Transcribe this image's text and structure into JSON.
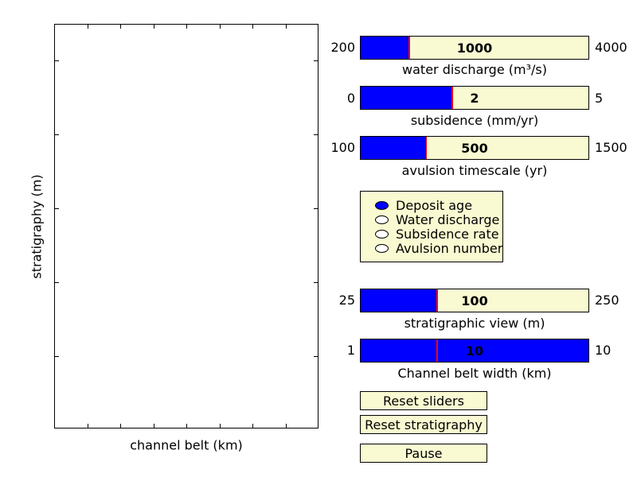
{
  "plot": {
    "xlabel": "channel belt (km)",
    "ylabel": "stratigraphy (m)"
  },
  "sliders": {
    "water_discharge": {
      "label": "water discharge (m³/s)",
      "min": "200",
      "max": "4000",
      "value": "1000",
      "fraction": 0.21
    },
    "subsidence": {
      "label": "subsidence (mm/yr)",
      "min": "0",
      "max": "5",
      "value": "2",
      "fraction": 0.4
    },
    "avulsion": {
      "label": "avulsion timescale (yr)",
      "min": "100",
      "max": "1500",
      "value": "500",
      "fraction": 0.286
    },
    "strat_view": {
      "label": "stratigraphic view (m)",
      "min": "25",
      "max": "250",
      "value": "100",
      "fraction": 0.333
    },
    "belt_width": {
      "label": "Channel belt width (km)",
      "min": "1",
      "max": "10",
      "value": "10",
      "fraction": 1.0,
      "marker_fraction": 0.333
    }
  },
  "radio": {
    "options": [
      "Deposit age",
      "Water discharge",
      "Subsidence rate",
      "Avulsion number"
    ],
    "selected": 0
  },
  "buttons": {
    "reset_sliders": "Reset sliders",
    "reset_strat": "Reset stratigraphy",
    "pause": "Pause"
  },
  "colors": {
    "fill": "#0000ff",
    "background": "#fafad2",
    "marker": "#ff0000"
  }
}
